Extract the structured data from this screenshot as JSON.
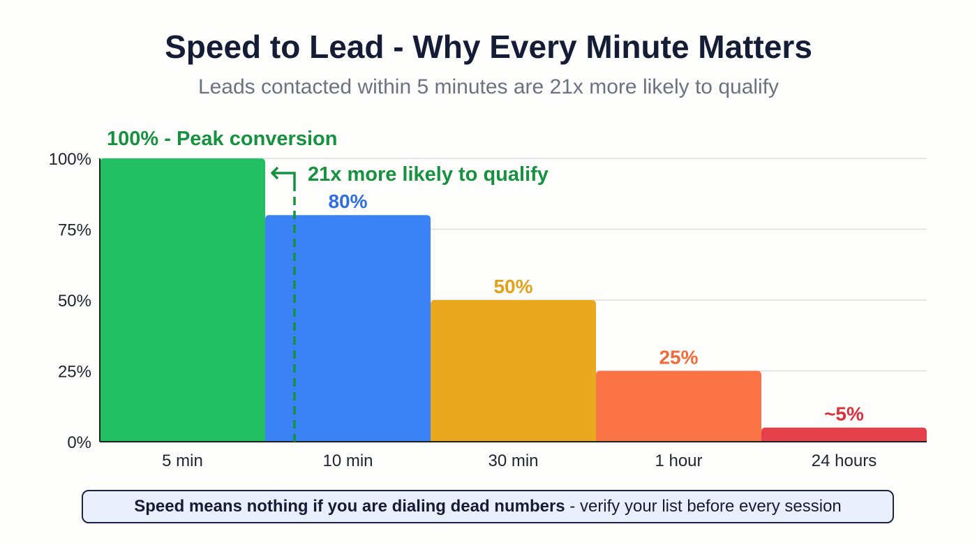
{
  "chart_data": {
    "type": "bar",
    "title": "Speed to Lead - Why Every Minute Matters",
    "subtitle": "Leads contacted within 5 minutes are 21x more likely to qualify",
    "categories": [
      "5 min",
      "10 min",
      "30 min",
      "1 hour",
      "24 hours"
    ],
    "values": [
      100,
      80,
      50,
      25,
      5
    ],
    "data_labels": [
      "100% - Peak conversion",
      "80%",
      "50%",
      "25%",
      "~5%"
    ],
    "colors": [
      "#22c063",
      "#3b82f6",
      "#eaa81f",
      "#f97345",
      "#e5404a"
    ],
    "label_colors": [
      "#16913f",
      "#2f6fe0",
      "#e3a11a",
      "#f06a3c",
      "#dc2f3c"
    ],
    "ylim": [
      0,
      100
    ],
    "yticks": [
      0,
      25,
      50,
      75,
      100
    ],
    "ytick_labels": [
      "0%",
      "25%",
      "50%",
      "75%",
      "100%"
    ],
    "grid": true,
    "xlabel": "",
    "ylabel": "",
    "annotation": {
      "text": "21x more likely to qualify",
      "color": "#16913f"
    }
  },
  "footer": {
    "bold": "Speed means nothing if you are dialing dead numbers",
    "rest": " - verify your list before every session"
  }
}
